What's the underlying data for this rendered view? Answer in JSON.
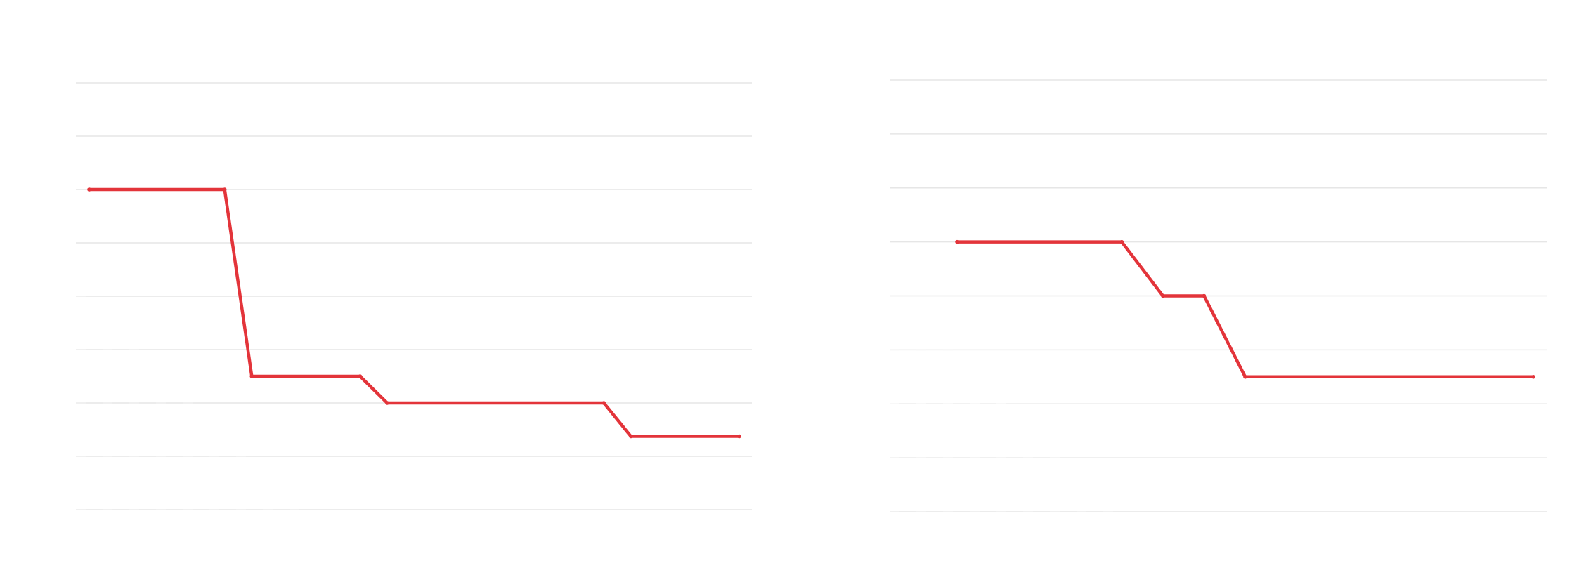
{
  "chart_data": [
    {
      "type": "line",
      "step": false,
      "ylim": [
        0,
        8
      ],
      "grid": true,
      "legend": "none",
      "x": [
        0,
        5,
        6,
        10,
        11,
        19,
        20,
        24
      ],
      "series": [
        {
          "color": "#e3343a",
          "values": [
            6,
            6,
            2.5,
            2.5,
            2,
            2,
            1.375,
            1.375
          ]
        }
      ]
    },
    {
      "type": "line",
      "step": false,
      "ylim": [
        0,
        8
      ],
      "grid": true,
      "legend": "none",
      "x": [
        0,
        4,
        5,
        6,
        7,
        14
      ],
      "series": [
        {
          "color": "#e3343a",
          "values": [
            5,
            5,
            4,
            4,
            2.5,
            2.5
          ]
        }
      ]
    }
  ]
}
